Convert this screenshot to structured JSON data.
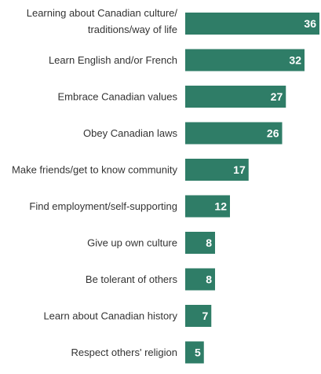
{
  "chart_data": {
    "type": "bar",
    "orientation": "horizontal",
    "categories": [
      [
        "Learning about Canadian culture/",
        "traditions/way of life"
      ],
      [
        "Learn English and/or French"
      ],
      [
        "Embrace Canadian values"
      ],
      [
        "Obey Canadian laws"
      ],
      [
        "Make friends/get to know community"
      ],
      [
        "Find employment/self-supporting"
      ],
      [
        "Give up own culture"
      ],
      [
        "Be tolerant of others"
      ],
      [
        "Learn about Canadian history"
      ],
      [
        "Respect others' religion"
      ]
    ],
    "values": [
      36,
      32,
      27,
      26,
      17,
      12,
      8,
      8,
      7,
      5
    ],
    "title": "",
    "xlabel": "",
    "ylabel": "",
    "xlim": [
      0,
      36
    ],
    "grid": false,
    "legend": "none",
    "bar_color": "#2f7d67",
    "label_color": "#ffffff"
  }
}
